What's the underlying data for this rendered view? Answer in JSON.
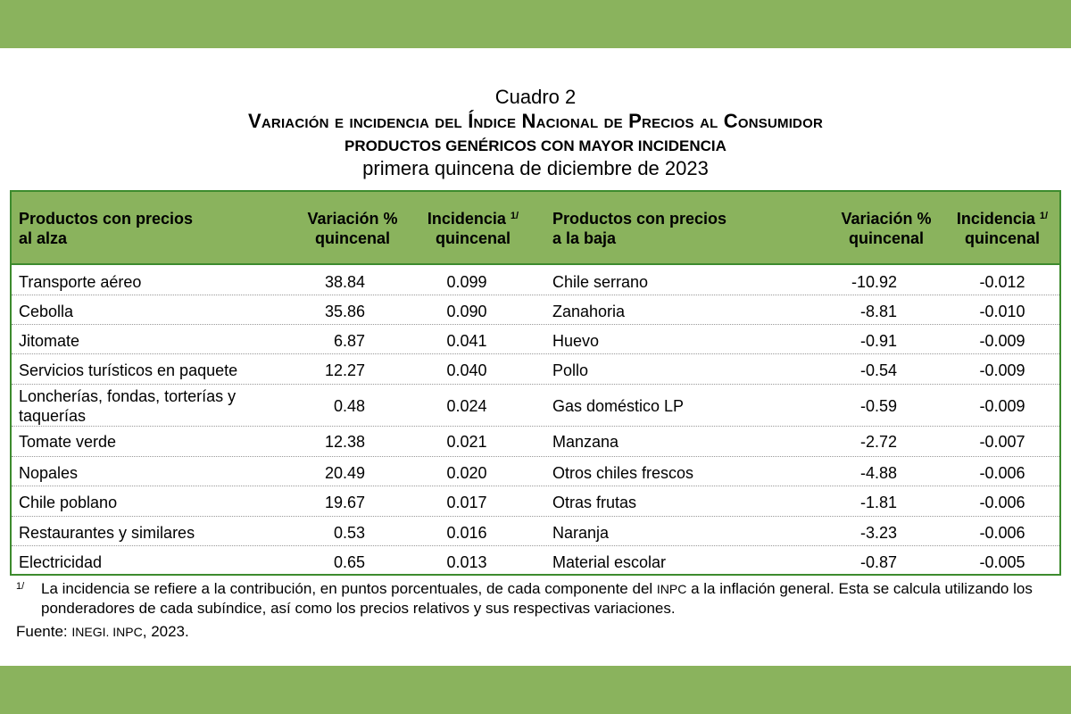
{
  "title": {
    "cuadro": "Cuadro 2",
    "main": "Variación e incidencia del Índice Nacional de Precios al Consumidor",
    "sub": "PRODUCTOS GENÉRICOS CON MAYOR INCIDENCIA",
    "period": "primera quincena de diciembre de 2023"
  },
  "headers": {
    "alza_line1": "Productos con precios",
    "alza_line2": "al alza",
    "var_line1": "Variación %",
    "var_line2": "quincenal",
    "inc_line1": "Incidencia",
    "inc_sup": "1/",
    "inc_line2": "quincenal",
    "baja_line1": "Productos con precios",
    "baja_line2": "a la baja",
    "var2_line1": "Variación %",
    "var2_line2": "quincenal",
    "inc2_line1": "Incidencia",
    "inc2_sup": "1/",
    "inc2_line2": "quincenal"
  },
  "rows": [
    {
      "alza": "Transporte aéreo",
      "var_alza": "38.84",
      "inc_alza": "0.099",
      "baja": "Chile serrano",
      "var_baja": "-10.92",
      "inc_baja": "-0.012"
    },
    {
      "alza": "Cebolla",
      "var_alza": "35.86",
      "inc_alza": "0.090",
      "baja": "Zanahoria",
      "var_baja": "-8.81",
      "inc_baja": "-0.010"
    },
    {
      "alza": "Jitomate",
      "var_alza": "6.87",
      "inc_alza": "0.041",
      "baja": "Huevo",
      "var_baja": "-0.91",
      "inc_baja": "-0.009"
    },
    {
      "alza": "Servicios turísticos en paquete",
      "var_alza": "12.27",
      "inc_alza": "0.040",
      "baja": "Pollo",
      "var_baja": "-0.54",
      "inc_baja": "-0.009"
    },
    {
      "alza": "Loncherías, fondas, torterías y taquerías",
      "var_alza": "0.48",
      "inc_alza": "0.024",
      "baja": "Gas doméstico LP",
      "var_baja": "-0.59",
      "inc_baja": "-0.009"
    },
    {
      "alza": "Tomate verde",
      "var_alza": "12.38",
      "inc_alza": "0.021",
      "baja": "Manzana",
      "var_baja": "-2.72",
      "inc_baja": "-0.007"
    },
    {
      "alza": "Nopales",
      "var_alza": "20.49",
      "inc_alza": "0.020",
      "baja": "Otros chiles frescos",
      "var_baja": "-4.88",
      "inc_baja": "-0.006"
    },
    {
      "alza": "Chile poblano",
      "var_alza": "19.67",
      "inc_alza": "0.017",
      "baja": "Otras frutas",
      "var_baja": "-1.81",
      "inc_baja": "-0.006"
    },
    {
      "alza": "Restaurantes y similares",
      "var_alza": "0.53",
      "inc_alza": "0.016",
      "baja": "Naranja",
      "var_baja": "-3.23",
      "inc_baja": "-0.006"
    },
    {
      "alza": "Electricidad",
      "var_alza": "0.65",
      "inc_alza": "0.013",
      "baja": "Material escolar",
      "var_baja": "-0.87",
      "inc_baja": "-0.005"
    }
  ],
  "notes": {
    "sup": "1/",
    "text_a": "La incidencia se refiere a la contribución, en puntos porcentuales, de cada componente del",
    "inpc": "INPC",
    "text_b": "a la inflación general. Esta se calcula utilizando los ponderadores de cada subíndice, así como los precios relativos y sus respectivas variaciones.",
    "fuente_label": "Fuente:",
    "fuente_src": "INEGI. INPC",
    "fuente_year": ", 2023."
  },
  "colors": {
    "band": "#8ab35d",
    "header": "#8ab35d",
    "border": "#3d8b2e"
  }
}
